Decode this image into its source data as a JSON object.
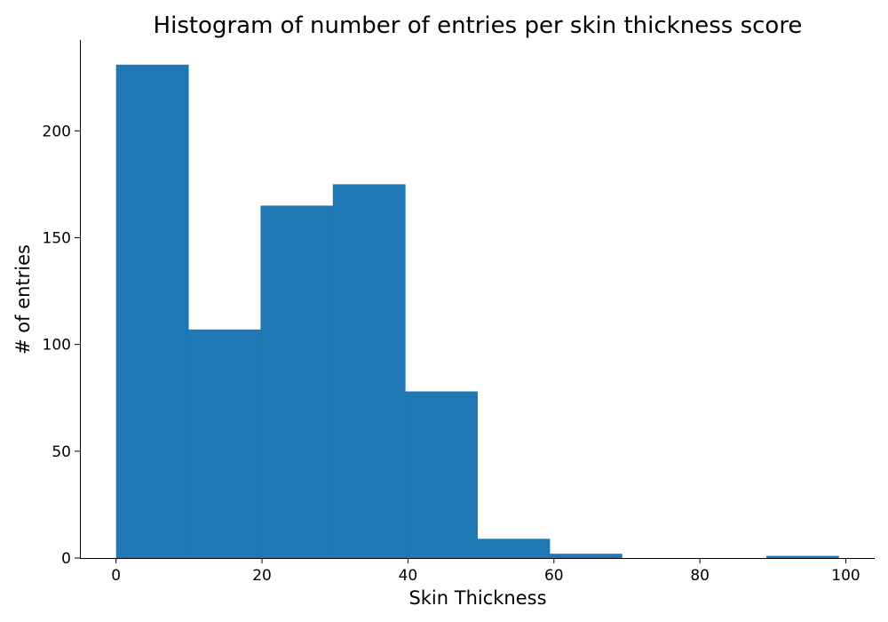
{
  "chart_data": {
    "type": "bar",
    "title": "Histogram of number of entries per skin thickness score",
    "xlabel": "Skin Thickness",
    "ylabel": "# of entries",
    "bins": [
      {
        "x0": 0,
        "x1": 9.9,
        "count": 231
      },
      {
        "x0": 9.9,
        "x1": 19.8,
        "count": 107
      },
      {
        "x0": 19.8,
        "x1": 29.7,
        "count": 165
      },
      {
        "x0": 29.7,
        "x1": 39.6,
        "count": 175
      },
      {
        "x0": 39.6,
        "x1": 49.5,
        "count": 78
      },
      {
        "x0": 49.5,
        "x1": 59.4,
        "count": 9
      },
      {
        "x0": 59.4,
        "x1": 69.3,
        "count": 2
      },
      {
        "x0": 69.3,
        "x1": 79.2,
        "count": 0
      },
      {
        "x0": 79.2,
        "x1": 89.1,
        "count": 0
      },
      {
        "x0": 89.1,
        "x1": 99,
        "count": 1
      }
    ],
    "xlim": [
      -4.95,
      103.95
    ],
    "ylim": [
      0,
      242.55
    ],
    "x_ticks": [
      0,
      20,
      40,
      60,
      80,
      100
    ],
    "y_ticks": [
      0,
      50,
      100,
      150,
      200
    ],
    "bar_color": "#1f77b4",
    "grid": false,
    "spines": [
      "left",
      "bottom"
    ]
  }
}
